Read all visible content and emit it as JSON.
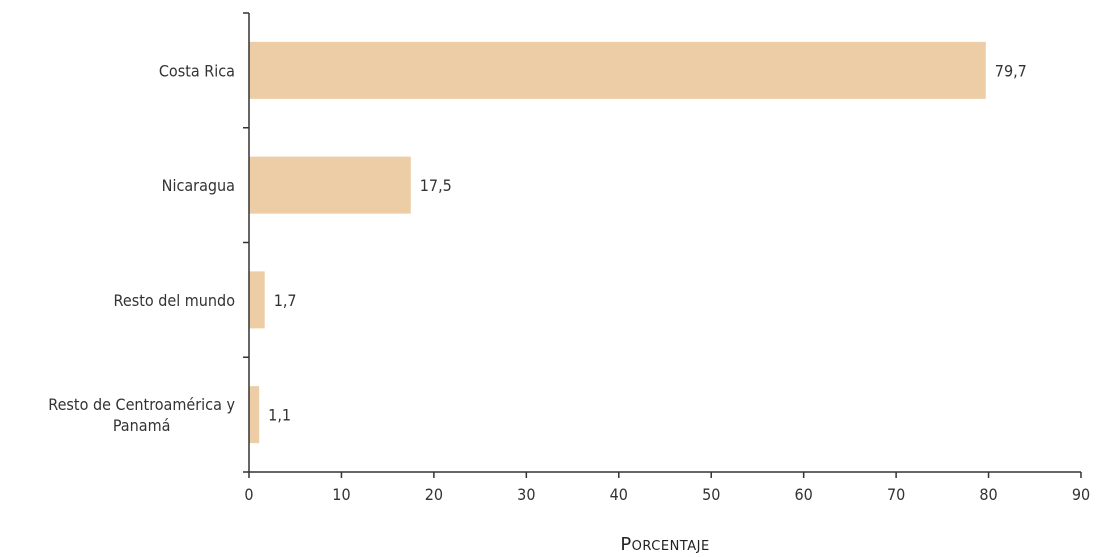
{
  "chart_data": {
    "type": "bar",
    "orientation": "horizontal",
    "categories": [
      "Costa Rica",
      "Nicaragua",
      "Resto del mundo",
      "Resto de Centroamérica y Panamá"
    ],
    "category_lines": [
      [
        "Costa Rica"
      ],
      [
        "Nicaragua"
      ],
      [
        "Resto del mundo"
      ],
      [
        "Resto de Centroamérica y",
        "Panamá"
      ]
    ],
    "values": [
      79.7,
      17.5,
      1.7,
      1.1
    ],
    "value_labels": [
      "79,7",
      "17,5",
      "1,7",
      "1,1"
    ],
    "xlabel": "Porcentaje",
    "ylabel": "",
    "title": "",
    "xlim": [
      0,
      90
    ],
    "xticks": [
      0,
      10,
      20,
      30,
      40,
      50,
      60,
      70,
      80,
      90
    ],
    "grid": false,
    "bar_color": "#EDCDA6"
  }
}
